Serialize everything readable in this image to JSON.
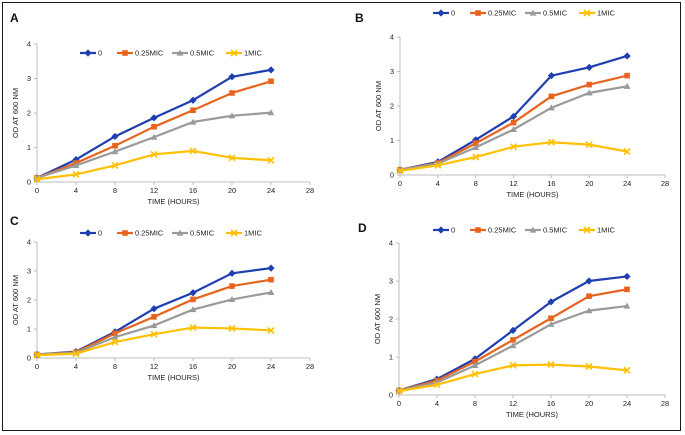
{
  "colors": {
    "0": "#1f3fb0",
    "0.25MIC": "#e8641e",
    "0.5MIC": "#9a9a9a",
    "1MIC": "#ffc000",
    "axis": "#bdbdbd"
  },
  "chart_data": [
    {
      "type": "line",
      "panel": "A",
      "xlabel": "TIME (HOURS)",
      "ylabel": "OD AT 600 NM",
      "xlim": [
        0,
        28
      ],
      "ylim": [
        0,
        4
      ],
      "xticks": [
        0,
        4,
        8,
        12,
        16,
        20,
        24,
        28
      ],
      "yticks": [
        0,
        1,
        2,
        3,
        4
      ],
      "x": [
        0,
        4,
        8,
        12,
        16,
        20,
        24
      ],
      "series": [
        {
          "name": "0",
          "marker": "diamond",
          "values": [
            0.12,
            0.65,
            1.32,
            1.86,
            2.37,
            3.05,
            3.25
          ]
        },
        {
          "name": "0.25MIC",
          "marker": "square",
          "values": [
            0.12,
            0.55,
            1.05,
            1.6,
            2.08,
            2.58,
            2.92
          ]
        },
        {
          "name": "0.5MIC",
          "marker": "triangle",
          "values": [
            0.12,
            0.48,
            0.88,
            1.3,
            1.74,
            1.92,
            2.01
          ]
        },
        {
          "name": "1MIC",
          "marker": "x",
          "values": [
            0.08,
            0.22,
            0.48,
            0.8,
            0.9,
            0.7,
            0.63
          ]
        }
      ]
    },
    {
      "type": "line",
      "panel": "B",
      "xlabel": "TIME (HOURS)",
      "ylabel": "OD AT 600 NM",
      "xlim": [
        0,
        28
      ],
      "ylim": [
        0,
        4
      ],
      "xticks": [
        0,
        4,
        8,
        12,
        16,
        20,
        24,
        28
      ],
      "yticks": [
        0,
        1,
        2,
        3,
        4
      ],
      "x": [
        0,
        4,
        8,
        12,
        16,
        20,
        24
      ],
      "series": [
        {
          "name": "0",
          "marker": "diamond",
          "values": [
            0.15,
            0.38,
            1.02,
            1.7,
            2.88,
            3.12,
            3.45
          ]
        },
        {
          "name": "0.25MIC",
          "marker": "square",
          "values": [
            0.15,
            0.35,
            0.92,
            1.52,
            2.28,
            2.62,
            2.88
          ]
        },
        {
          "name": "0.5MIC",
          "marker": "triangle",
          "values": [
            0.15,
            0.33,
            0.8,
            1.32,
            1.95,
            2.38,
            2.57
          ]
        },
        {
          "name": "1MIC",
          "marker": "x",
          "values": [
            0.12,
            0.28,
            0.52,
            0.82,
            0.95,
            0.88,
            0.68
          ]
        }
      ]
    },
    {
      "type": "line",
      "panel": "C",
      "xlabel": "TIME (HOURS)",
      "ylabel": "OD AT 600 NM",
      "xlim": [
        0,
        28
      ],
      "ylim": [
        0,
        4
      ],
      "xticks": [
        0,
        4,
        8,
        12,
        16,
        20,
        24,
        28
      ],
      "yticks": [
        0,
        1,
        2,
        3,
        4
      ],
      "x": [
        0,
        4,
        8,
        12,
        16,
        20,
        24
      ],
      "series": [
        {
          "name": "0",
          "marker": "diamond",
          "values": [
            0.12,
            0.22,
            0.9,
            1.7,
            2.25,
            2.92,
            3.1
          ]
        },
        {
          "name": "0.25MIC",
          "marker": "square",
          "values": [
            0.12,
            0.2,
            0.85,
            1.42,
            2.02,
            2.48,
            2.7
          ]
        },
        {
          "name": "0.5MIC",
          "marker": "triangle",
          "values": [
            0.12,
            0.18,
            0.72,
            1.12,
            1.67,
            2.02,
            2.26
          ]
        },
        {
          "name": "1MIC",
          "marker": "x",
          "values": [
            0.1,
            0.15,
            0.55,
            0.82,
            1.05,
            1.02,
            0.95
          ]
        }
      ]
    },
    {
      "type": "line",
      "panel": "D",
      "xlabel": "TIME (HOURS)",
      "ylabel": "OD AT 600 NM",
      "xlim": [
        0,
        28
      ],
      "ylim": [
        0,
        4
      ],
      "xticks": [
        0,
        4,
        8,
        12,
        16,
        20,
        24,
        28
      ],
      "yticks": [
        0,
        1,
        2,
        3,
        4
      ],
      "x": [
        0,
        4,
        8,
        12,
        16,
        20,
        24
      ],
      "series": [
        {
          "name": "0",
          "marker": "diamond",
          "values": [
            0.12,
            0.42,
            0.95,
            1.7,
            2.45,
            3.0,
            3.12
          ]
        },
        {
          "name": "0.25MIC",
          "marker": "square",
          "values": [
            0.12,
            0.38,
            0.88,
            1.45,
            2.02,
            2.6,
            2.78
          ]
        },
        {
          "name": "0.5MIC",
          "marker": "triangle",
          "values": [
            0.12,
            0.33,
            0.78,
            1.3,
            1.86,
            2.22,
            2.34
          ]
        },
        {
          "name": "1MIC",
          "marker": "x",
          "values": [
            0.1,
            0.27,
            0.55,
            0.78,
            0.8,
            0.75,
            0.65
          ]
        }
      ]
    }
  ]
}
